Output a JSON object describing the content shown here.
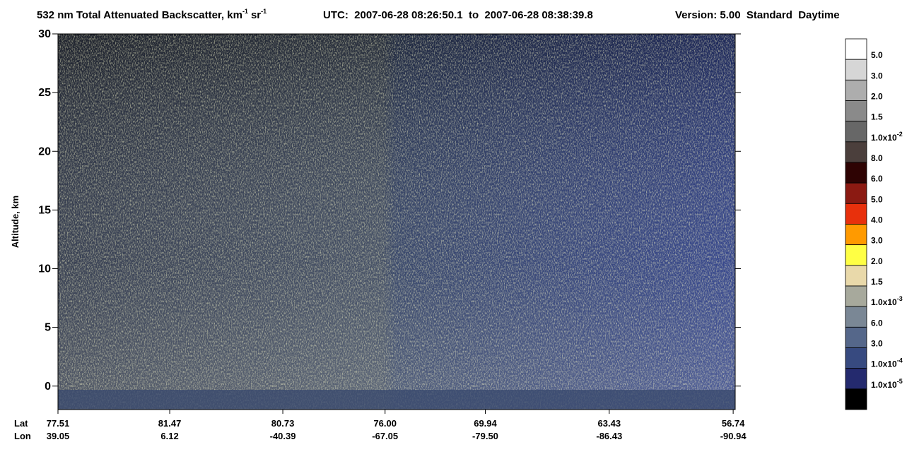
{
  "chart_data": {
    "type": "curtain",
    "title": [
      "532 nm Total Attenuated Backscatter, km",
      "-1",
      "sr",
      "-1"
    ],
    "subtitle": "UTC:  2007-06-28 08:26:50.1  to  2007-06-28 08:38:39.8",
    "version": "Version: 5.00  Standard  Daytime",
    "ylabel": "Altitude, km",
    "ylim": [
      -2,
      30
    ],
    "yticks": [
      0,
      5,
      10,
      15,
      20,
      25,
      30
    ],
    "x_axis": {
      "row_labels": [
        "Lat",
        "Lon"
      ],
      "ticks": [
        {
          "lat": "77.51",
          "lon": "39.05"
        },
        {
          "lat": "81.47",
          "lon": "6.12"
        },
        {
          "lat": "80.73",
          "lon": "-40.39"
        },
        {
          "lat": "76.00",
          "lon": "-67.05"
        },
        {
          "lat": "69.94",
          "lon": "-79.50"
        },
        {
          "lat": "63.43",
          "lon": "-86.43"
        },
        {
          "lat": "56.74",
          "lon": "-90.94"
        }
      ]
    },
    "colorbar": {
      "colors": [
        "#ffffff",
        "#d6d6d6",
        "#adadad",
        "#8a8a8a",
        "#676767",
        "#4b3f3c",
        "#2e0303",
        "#8b1a12",
        "#e8300c",
        "#ff9a00",
        "#ffff44",
        "#e9d9aa",
        "#a7a99c",
        "#7a8795",
        "#55678a",
        "#374a80",
        "#242a6e",
        "#000000"
      ],
      "labels": [
        "5.0",
        "3.0",
        "2.0",
        "1.5",
        {
          "base": "1.0x10",
          "exp": "-2"
        },
        "8.0",
        "6.0",
        "5.0",
        "4.0",
        "3.0",
        "2.0",
        "1.5",
        {
          "base": "1.0x10",
          "exp": "-3"
        },
        "6.0",
        "3.0",
        {
          "base": "1.0x10",
          "exp": "-4"
        },
        {
          "base": "1.0x10",
          "exp": "-5"
        }
      ]
    }
  }
}
